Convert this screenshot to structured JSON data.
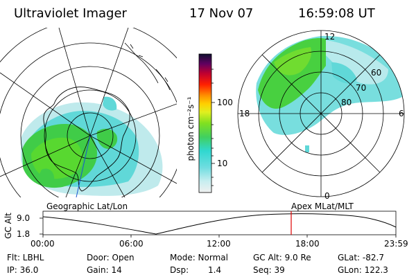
{
  "header": {
    "instrument": "Ultraviolet Imager",
    "date": "17 Nov 07",
    "time": "16:59:08 UT"
  },
  "colorbar": {
    "unit_label": "photon cm⁻²s⁻¹",
    "ticks": [
      "100",
      "10"
    ]
  },
  "geo_map": {
    "label": "Geographic Lat/Lon"
  },
  "polar_map": {
    "label": "Apex MLat/MLT",
    "mlt_labels": [
      "12",
      "18",
      "6",
      "0"
    ],
    "lat_labels": [
      "60",
      "70",
      "80"
    ]
  },
  "altitude_plot": {
    "ylabel": "GC Alt",
    "yticks": [
      "9.0",
      "1.8"
    ],
    "xticks": [
      "00:00",
      "06:00",
      "12:00",
      "18:00",
      "23:59"
    ],
    "marker_time": "16:59",
    "marker_color": "#e00000"
  },
  "info": {
    "flt": "Flt: LBHL",
    "ip": "IP: 36.0",
    "door": "Door: Open",
    "gain": "Gain: 14",
    "mode": "Mode: Normal",
    "dsp_label": "Dsp:",
    "dsp_value": "1.4",
    "gc_alt": "GC Alt: 9.0 Re",
    "seq": "Seq: 39",
    "glat": "GLat: -82.7",
    "glon": "GLon: 122.3"
  }
}
